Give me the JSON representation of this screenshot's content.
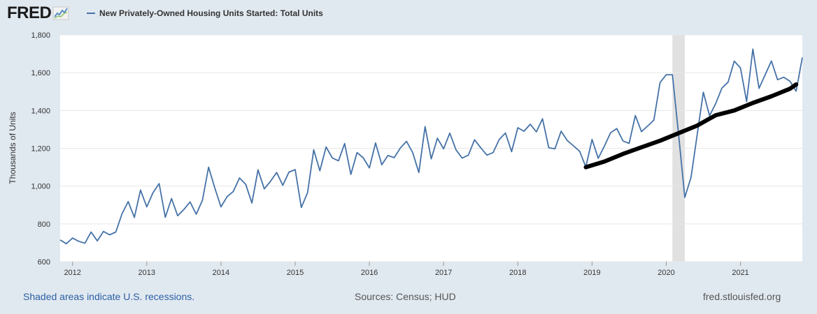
{
  "header": {
    "logo_text": "FRED",
    "legend_label": "New Privately-Owned Housing Units Started: Total Units"
  },
  "footer": {
    "recessions_note": "Shaded areas indicate U.S. recessions.",
    "sources": "Sources: Census; HUD",
    "site": "fred.stlouisfed.org"
  },
  "colors": {
    "page_bg": "#e1e9f0",
    "plot_bg": "#ffffff",
    "series": "#4572a7",
    "trend": "#000000",
    "recession": "#e1e1e1",
    "grid": "#e6e6e6"
  },
  "chart_data": {
    "type": "line",
    "title": "New Privately-Owned Housing Units Started: Total Units",
    "ylabel": "Thousands of Units",
    "xlabel": "",
    "ylim": [
      600,
      1800
    ],
    "xlim": [
      "2011-11",
      "2021-11"
    ],
    "y_ticks": [
      "600",
      "800",
      "1,000",
      "1,200",
      "1,400",
      "1,600",
      "1,800"
    ],
    "x_ticks": [
      "2012",
      "2013",
      "2014",
      "2015",
      "2016",
      "2017",
      "2018",
      "2019",
      "2020",
      "2021"
    ],
    "grid": true,
    "recession": {
      "start": "2020-02",
      "end": "2020-04"
    },
    "series": [
      {
        "name": "New Privately-Owned Housing Units Started: Total Units",
        "frequency": "monthly",
        "start": "2011-11",
        "values": [
          715,
          695,
          725,
          708,
          698,
          757,
          710,
          760,
          742,
          757,
          853,
          918,
          834,
          979,
          890,
          964,
          1013,
          835,
          934,
          843,
          876,
          916,
          851,
          925,
          1100,
          991,
          890,
          944,
          972,
          1043,
          1009,
          910,
          1086,
          985,
          1025,
          1072,
          1004,
          1074,
          1087,
          887,
          965,
          1192,
          1081,
          1207,
          1149,
          1134,
          1225,
          1062,
          1177,
          1150,
          1096,
          1228,
          1113,
          1162,
          1150,
          1201,
          1237,
          1177,
          1072,
          1315,
          1144,
          1253,
          1197,
          1280,
          1192,
          1148,
          1164,
          1245,
          1203,
          1164,
          1177,
          1247,
          1281,
          1182,
          1309,
          1290,
          1327,
          1287,
          1356,
          1203,
          1197,
          1290,
          1241,
          1213,
          1184,
          1101,
          1247,
          1147,
          1212,
          1282,
          1304,
          1239,
          1226,
          1373,
          1288,
          1318,
          1349,
          1548,
          1589,
          1589,
          1270,
          940,
          1046,
          1272,
          1497,
          1372,
          1437,
          1519,
          1550,
          1661,
          1625,
          1447,
          1725,
          1517,
          1589,
          1662,
          1563,
          1576,
          1555,
          1502,
          1680
        ]
      },
      {
        "name": "",
        "role": "trend",
        "x": [
          "2018-12",
          "2019-03",
          "2019-06",
          "2019-09",
          "2019-12",
          "2020-03",
          "2020-06",
          "2020-09",
          "2020-12",
          "2021-03",
          "2021-06",
          "2021-09",
          "2021-10"
        ],
        "values": [
          1100,
          1130,
          1170,
          1205,
          1240,
          1280,
          1320,
          1375,
          1400,
          1440,
          1475,
          1515,
          1538
        ]
      }
    ]
  }
}
